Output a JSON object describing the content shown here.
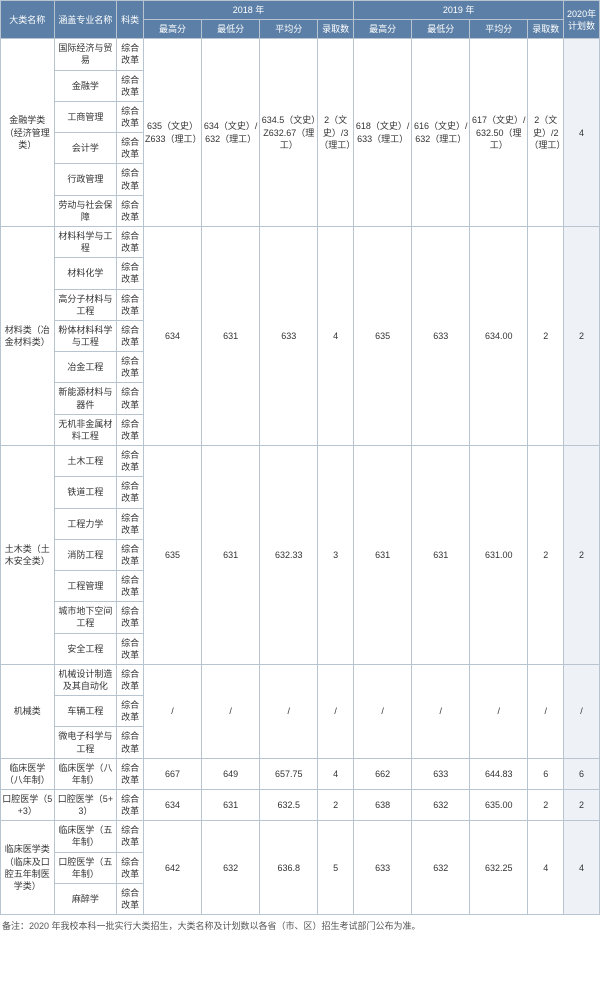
{
  "header": {
    "category": "大类名称",
    "major": "涵盖专业名称",
    "subject": "科类",
    "year2018": "2018 年",
    "year2019": "2019 年",
    "plan2020": "2020年计划数",
    "cols": {
      "max": "最高分",
      "min": "最低分",
      "avg": "平均分",
      "count": "录取数"
    }
  },
  "subjectLabel": "综合改革",
  "groups": [
    {
      "category": "金融学类（经济管理类）",
      "majors": [
        "国际经济与贸易",
        "金融学",
        "工商管理",
        "会计学",
        "行政管理",
        "劳动与社会保障"
      ],
      "y2018": {
        "max": "635（文史）Z633（理工）",
        "min": "634（文史）/632（理工）",
        "avg": "634.5（文史）Z632.67（理工）",
        "count": "2（文史）/3（理工）"
      },
      "y2019": {
        "max": "618（文史）/633（理工）",
        "min": "616（文史）/632（理工）",
        "avg": "617（文史）/632.50（理工）",
        "count": "2（文史）/2（理工）"
      },
      "plan": "4"
    },
    {
      "category": "材料类（冶金材料类）",
      "majors": [
        "材料科学与工程",
        "材料化学",
        "高分子材料与工程",
        "粉体材料科学与工程",
        "冶金工程",
        "新能源材料与器件",
        "无机非金属材料工程"
      ],
      "y2018": {
        "max": "634",
        "min": "631",
        "avg": "633",
        "count": "4"
      },
      "y2019": {
        "max": "635",
        "min": "633",
        "avg": "634.00",
        "count": "2"
      },
      "plan": "2"
    },
    {
      "category": "土木类（土木安全类）",
      "majors": [
        "土木工程",
        "铁道工程",
        "工程力学",
        "消防工程",
        "工程管理",
        "城市地下空间工程",
        "安全工程"
      ],
      "y2018": {
        "max": "635",
        "min": "631",
        "avg": "632.33",
        "count": "3"
      },
      "y2019": {
        "max": "631",
        "min": "631",
        "avg": "631.00",
        "count": "2"
      },
      "plan": "2"
    },
    {
      "category": "机械类",
      "majors": [
        "机械设计制造及其自动化",
        "车辆工程",
        "微电子科学与工程"
      ],
      "y2018": {
        "max": "/",
        "min": "/",
        "avg": "/",
        "count": "/"
      },
      "y2019": {
        "max": "/",
        "min": "/",
        "avg": "/",
        "count": "/"
      },
      "plan": "/"
    },
    {
      "category": "临床医学（八年制）",
      "majors": [
        "临床医学（八年制）"
      ],
      "y2018": {
        "max": "667",
        "min": "649",
        "avg": "657.75",
        "count": "4"
      },
      "y2019": {
        "max": "662",
        "min": "633",
        "avg": "644.83",
        "count": "6"
      },
      "plan": "6"
    },
    {
      "category": "口腔医学（5+3）",
      "majors": [
        "口腔医学（5+3）"
      ],
      "y2018": {
        "max": "634",
        "min": "631",
        "avg": "632.5",
        "count": "2"
      },
      "y2019": {
        "max": "638",
        "min": "632",
        "avg": "635.00",
        "count": "2"
      },
      "plan": "2"
    },
    {
      "category": "临床医学类（临床及口腔五年制医学类）",
      "majors": [
        "临床医学（五年制）",
        "口腔医学（五年制）",
        "麻醉学"
      ],
      "y2018": {
        "max": "642",
        "min": "632",
        "avg": "636.8",
        "count": "5"
      },
      "y2019": {
        "max": "633",
        "min": "632",
        "avg": "632.25",
        "count": "4"
      },
      "plan": "4"
    }
  ],
  "footnote": "备注：2020 年我校本科一批实行大类招生，大类名称及计划数以各省（市、区）招生考试部门公布为准。",
  "style": {
    "headerBg": "#5b7fa6",
    "headerColor": "#ffffff",
    "borderColor": "#b8c4d0",
    "planCellBg": "#eef2f7",
    "fontSize": 9
  }
}
